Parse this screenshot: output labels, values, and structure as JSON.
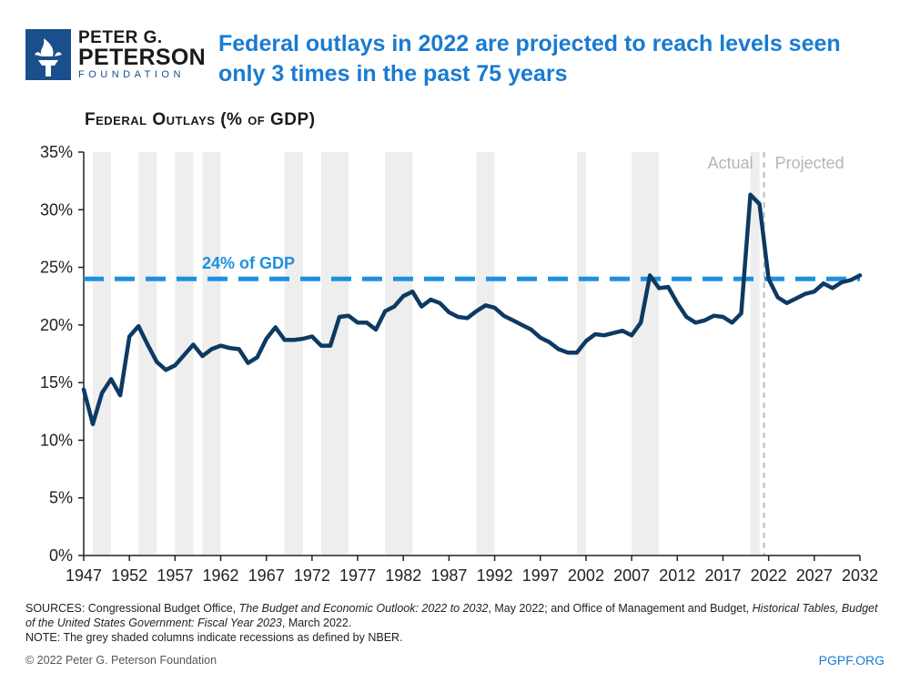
{
  "logo": {
    "line1": "PETER G.",
    "line2": "PETERSON",
    "line3": "FOUNDATION"
  },
  "title": "Federal outlays in 2022 are projected to reach levels seen only 3 times in the past 75 years",
  "subtitle": "Federal Outlays (% of GDP)",
  "footer": {
    "sources_prefix": "SOURCES: Congressional Budget Office, ",
    "sources_title1": "The Budget and Economic Outlook: 2022 to 2032",
    "sources_mid": ", May 2022; and Office of Management and Budget, ",
    "sources_title2": "Historical Tables, Budget of the United States Government: Fiscal Year 2023",
    "sources_suffix": ", March 2022.",
    "note": "NOTE: The grey shaded columns indicate recessions as defined by NBER.",
    "copyright": "© 2022 Peter G. Peterson Foundation",
    "site": "PGPF.ORG"
  },
  "colors": {
    "line": "#0d3a63",
    "reference": "#1e90e0",
    "recession": "#eeeeee",
    "divider": "#bbbbbb",
    "annotation": "#b5b5b5"
  },
  "chart_data": {
    "type": "line",
    "title": "Federal Outlays (% of GDP)",
    "xlabel": "",
    "ylabel": "",
    "xlim": [
      1947,
      2032
    ],
    "ylim": [
      0,
      35
    ],
    "x_ticks": [
      1947,
      1952,
      1957,
      1962,
      1967,
      1972,
      1977,
      1982,
      1987,
      1992,
      1997,
      2002,
      2007,
      2012,
      2017,
      2022,
      2027,
      2032
    ],
    "y_ticks": [
      0,
      5,
      10,
      15,
      20,
      25,
      30,
      35
    ],
    "y_tick_labels": [
      "0%",
      "5%",
      "10%",
      "15%",
      "20%",
      "25%",
      "30%",
      "35%"
    ],
    "grid": false,
    "series": [
      {
        "name": "Federal Outlays",
        "x": [
          1947,
          1948,
          1949,
          1950,
          1951,
          1952,
          1953,
          1954,
          1955,
          1956,
          1957,
          1958,
          1959,
          1960,
          1961,
          1962,
          1963,
          1964,
          1965,
          1966,
          1967,
          1968,
          1969,
          1970,
          1971,
          1972,
          1973,
          1974,
          1975,
          1976,
          1977,
          1978,
          1979,
          1980,
          1981,
          1982,
          1983,
          1984,
          1985,
          1986,
          1987,
          1988,
          1989,
          1990,
          1991,
          1992,
          1993,
          1994,
          1995,
          1996,
          1997,
          1998,
          1999,
          2000,
          2001,
          2002,
          2003,
          2004,
          2005,
          2006,
          2007,
          2008,
          2009,
          2010,
          2011,
          2012,
          2013,
          2014,
          2015,
          2016,
          2017,
          2018,
          2019,
          2020,
          2021,
          2022,
          2023,
          2024,
          2025,
          2026,
          2027,
          2028,
          2029,
          2030,
          2031,
          2032
        ],
        "values": [
          14.4,
          11.4,
          14.1,
          15.3,
          13.9,
          19.0,
          19.9,
          18.3,
          16.8,
          16.1,
          16.5,
          17.4,
          18.3,
          17.3,
          17.9,
          18.2,
          18.0,
          17.9,
          16.7,
          17.2,
          18.8,
          19.8,
          18.7,
          18.7,
          18.8,
          19.0,
          18.2,
          18.2,
          20.7,
          20.8,
          20.2,
          20.2,
          19.6,
          21.2,
          21.6,
          22.5,
          22.9,
          21.6,
          22.2,
          21.9,
          21.1,
          20.7,
          20.6,
          21.2,
          21.7,
          21.5,
          20.8,
          20.4,
          20.0,
          19.6,
          18.9,
          18.5,
          17.9,
          17.6,
          17.6,
          18.6,
          19.2,
          19.1,
          19.3,
          19.5,
          19.1,
          20.2,
          24.3,
          23.2,
          23.3,
          21.9,
          20.7,
          20.2,
          20.4,
          20.8,
          20.7,
          20.2,
          21.0,
          31.3,
          30.5,
          24.0,
          22.4,
          21.9,
          22.3,
          22.7,
          22.9,
          23.6,
          23.2,
          23.7,
          23.9,
          24.3
        ]
      }
    ],
    "reference_line": {
      "value": 24,
      "label": "24% of GDP"
    },
    "recessions": [
      [
        1948,
        1949
      ],
      [
        1953,
        1954
      ],
      [
        1957,
        1958
      ],
      [
        1960,
        1961
      ],
      [
        1969,
        1970
      ],
      [
        1973,
        1975
      ],
      [
        1980,
        1982
      ],
      [
        1990,
        1991
      ],
      [
        2001,
        2001
      ],
      [
        2007,
        2009
      ],
      [
        2020,
        2020
      ]
    ],
    "divider": {
      "x": 2021.5,
      "left_label": "Actual",
      "right_label": "Projected"
    }
  }
}
